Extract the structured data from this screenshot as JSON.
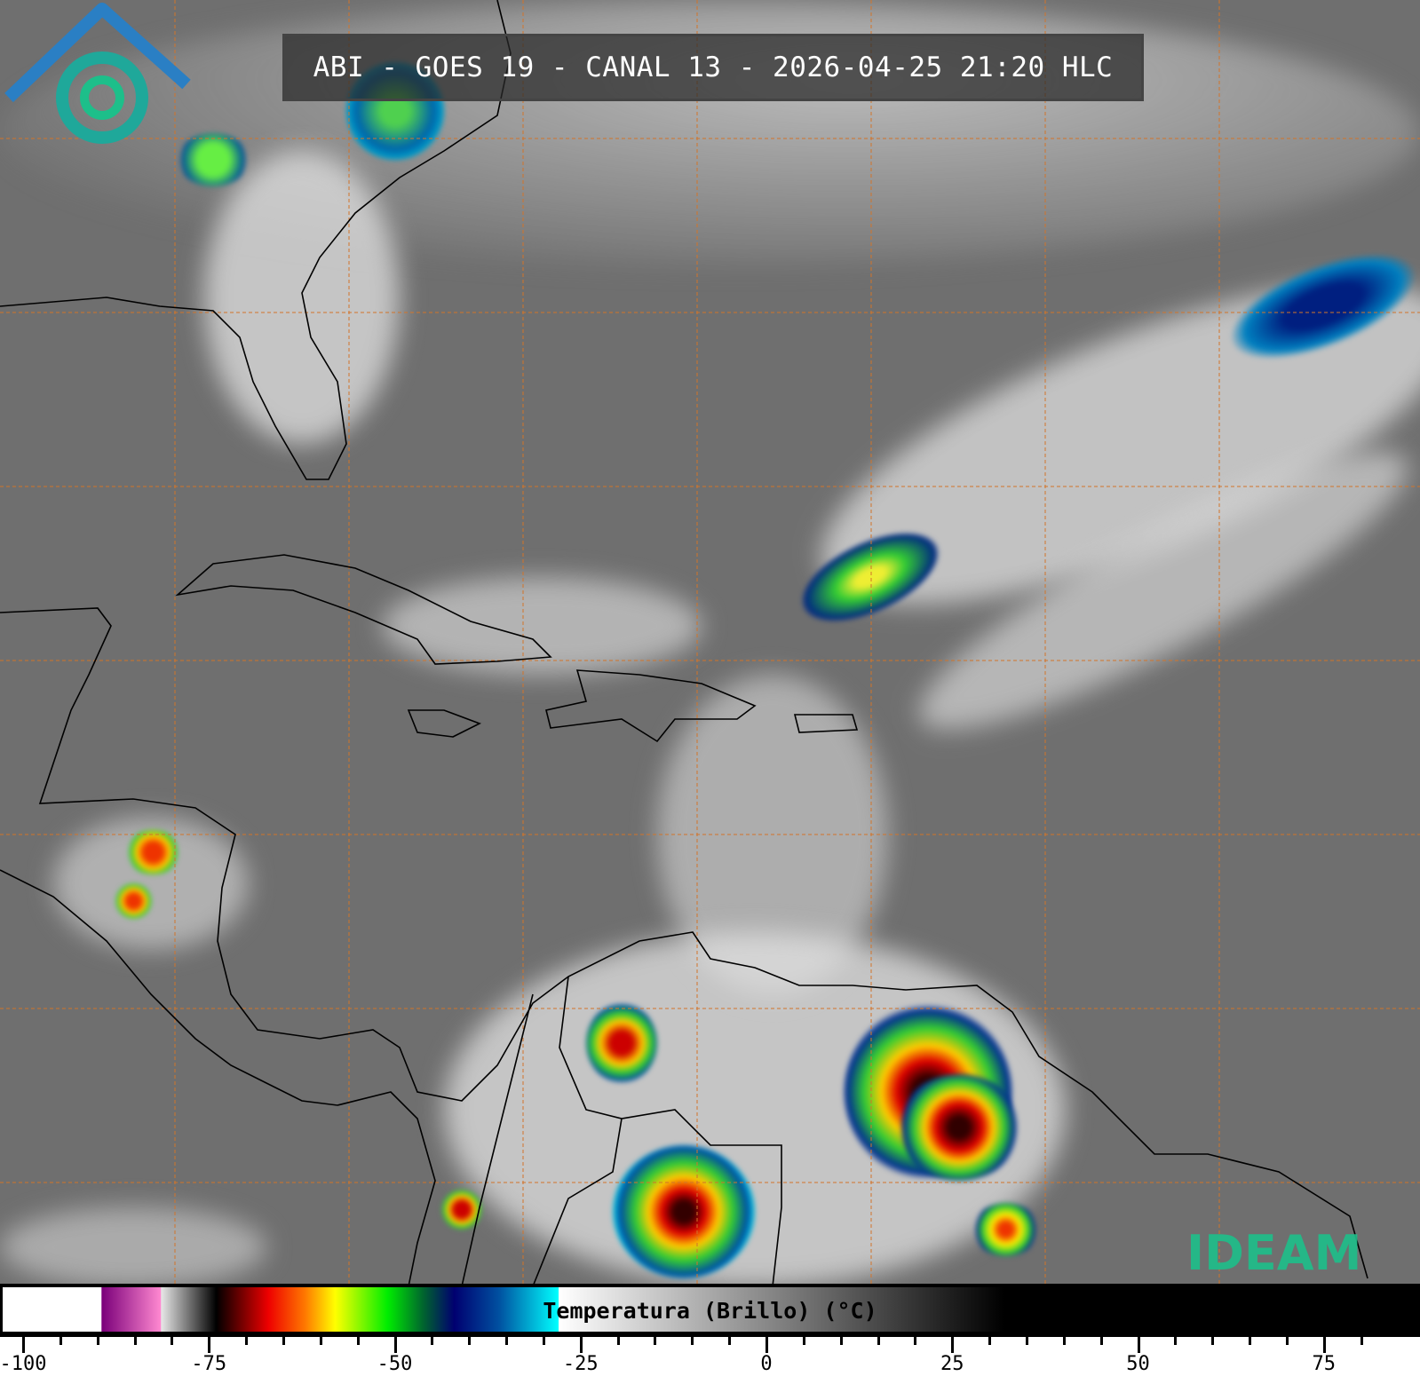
{
  "title": "ABI - GOES 19 - CANAL 13 - 2026-04-25 21:20 HLC",
  "logo_text": "IDEAM",
  "colorbar": {
    "label": "Temperatura (Brillo) (°C)",
    "min": -103,
    "max": 84,
    "ticks": [
      "-100",
      "-75",
      "-50",
      "-25",
      "0",
      "25",
      "50",
      "75"
    ],
    "tick_values": [
      -100,
      -75,
      -50,
      -25,
      0,
      25,
      50,
      75
    ],
    "stops": [
      {
        "t": -103,
        "color": "#ffffff"
      },
      {
        "t": -89.5,
        "color": "#ffffff"
      },
      {
        "t": -89.4,
        "color": "#7a007a"
      },
      {
        "t": -81.5,
        "color": "#ff88d0"
      },
      {
        "t": -81.4,
        "color": "#e6e6e6"
      },
      {
        "t": -74.5,
        "color": "#101010"
      },
      {
        "t": -74,
        "color": "#000000"
      },
      {
        "t": -67,
        "color": "#ee0000"
      },
      {
        "t": -62,
        "color": "#ff7a00"
      },
      {
        "t": -58,
        "color": "#ffff00"
      },
      {
        "t": -51,
        "color": "#00ee00"
      },
      {
        "t": -46,
        "color": "#006030"
      },
      {
        "t": -42,
        "color": "#000070"
      },
      {
        "t": -36,
        "color": "#0050a0"
      },
      {
        "t": -28,
        "color": "#00ffff"
      },
      {
        "t": -27.9,
        "color": "#ffffff"
      },
      {
        "t": 32,
        "color": "#000000"
      },
      {
        "t": 84,
        "color": "#000000"
      }
    ]
  },
  "grid_color": "#d2742a"
}
